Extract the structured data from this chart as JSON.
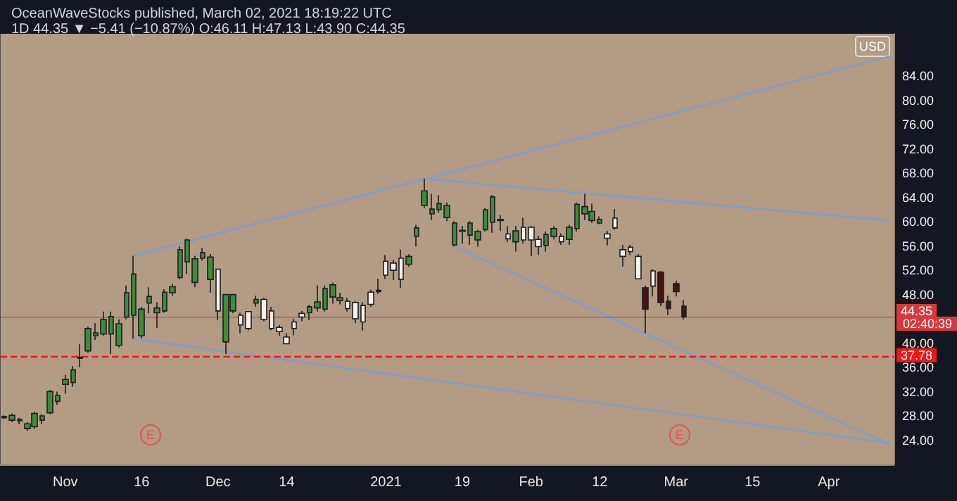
{
  "chart_data": {
    "type": "candlestick",
    "title": "OceanWaveStocks published, March 02, 2021 18:19:22 UTC",
    "subtitle": "1D 44.35 ▼ −5.41 (−10.87%) O:46.11 H:47.13 L:43.90 C:44.35",
    "categories": [
      null,
      null,
      null,
      null,
      null,
      null,
      null,
      null,
      "Nov",
      null,
      null,
      null,
      null,
      null,
      null,
      null,
      null,
      null,
      "16",
      null,
      null,
      null,
      null,
      null,
      null,
      null,
      null,
      null,
      "Dec",
      null,
      null,
      null,
      null,
      null,
      null,
      null,
      null,
      "14",
      null,
      null,
      null,
      null,
      null,
      null,
      null,
      null,
      null,
      null,
      null,
      null,
      "2021",
      null,
      null,
      null,
      null,
      null,
      null,
      null,
      null,
      null,
      "19",
      null,
      null,
      null,
      null,
      null,
      null,
      null,
      null,
      "Feb",
      null,
      null,
      null,
      null,
      null,
      null,
      null,
      null,
      "12",
      null,
      null,
      null,
      null,
      null,
      null,
      null,
      null,
      null,
      "Mar",
      null,
      null,
      null,
      null,
      null,
      null,
      null,
      null,
      null,
      "15",
      null,
      null,
      null,
      null,
      null,
      null,
      null,
      null,
      null,
      "Apr",
      null,
      null,
      null,
      null,
      null,
      null,
      null,
      null
    ],
    "ohlc": [
      [
        27.7,
        28.1,
        27.5,
        27.9
      ],
      [
        27.3,
        28.4,
        27.0,
        28.1
      ],
      [
        27.4,
        27.7,
        26.6,
        27.2
      ],
      [
        25.9,
        27.0,
        25.5,
        26.7
      ],
      [
        26.2,
        28.7,
        25.9,
        28.4
      ],
      [
        27.3,
        28.3,
        26.6,
        28.0
      ],
      [
        28.5,
        32.3,
        28.3,
        32.0
      ],
      [
        30.4,
        32.0,
        29.8,
        31.4
      ],
      [
        33.2,
        34.8,
        31.7,
        34.0
      ],
      [
        33.5,
        36.2,
        32.8,
        35.6
      ],
      [
        37.5,
        39.8,
        36.0,
        37.7
      ],
      [
        38.7,
        42.7,
        38.4,
        42.4
      ],
      [
        41.2,
        43.3,
        40.5,
        41.7
      ],
      [
        41.5,
        45.2,
        41.2,
        43.9
      ],
      [
        41.5,
        45.2,
        38.2,
        44.4
      ],
      [
        39.6,
        43.9,
        39.3,
        43.2
      ],
      [
        44.3,
        49.5,
        43.9,
        48.3
      ],
      [
        44.6,
        54.4,
        40.7,
        51.4
      ],
      [
        41.2,
        46.0,
        40.8,
        45.6
      ],
      [
        46.6,
        49.2,
        44.9,
        47.7
      ],
      [
        45.0,
        46.7,
        42.5,
        45.8
      ],
      [
        45.3,
        48.9,
        45.0,
        48.4
      ],
      [
        48.3,
        49.8,
        47.8,
        49.3
      ],
      [
        50.8,
        55.9,
        50.5,
        55.4
      ],
      [
        53.4,
        57.2,
        51.4,
        57.0
      ],
      [
        50.0,
        54.4,
        49.2,
        53.9
      ],
      [
        54.0,
        55.7,
        53.6,
        54.9
      ],
      [
        50.5,
        54.7,
        48.3,
        54.2
      ],
      [
        52.2,
        52.3,
        43.8,
        45.3
      ],
      [
        40.2,
        48.1,
        38.2,
        48.0
      ],
      [
        45.3,
        48.1,
        44.9,
        48.0
      ],
      [
        44.6,
        45.0,
        41.6,
        43.0
      ],
      [
        45.2,
        45.3,
        42.1,
        42.4
      ],
      [
        46.6,
        47.8,
        46.0,
        47.2
      ],
      [
        47.2,
        47.5,
        43.6,
        43.9
      ],
      [
        45.3,
        46.0,
        42.1,
        42.4
      ],
      [
        42.6,
        43.0,
        41.2,
        41.9
      ],
      [
        41.0,
        41.6,
        39.8,
        39.9
      ],
      [
        43.5,
        44.0,
        41.3,
        42.4
      ],
      [
        44.9,
        45.3,
        43.6,
        44.3
      ],
      [
        45.0,
        46.3,
        43.8,
        46.0
      ],
      [
        45.8,
        49.5,
        45.2,
        46.8
      ],
      [
        45.6,
        49.5,
        45.2,
        49.0
      ],
      [
        47.6,
        50.0,
        46.5,
        49.6
      ],
      [
        47.0,
        48.3,
        46.4,
        47.5
      ],
      [
        46.9,
        47.5,
        45.2,
        45.7
      ],
      [
        46.7,
        46.9,
        43.3,
        44.0
      ],
      [
        46.2,
        46.7,
        42.1,
        43.5
      ],
      [
        48.4,
        48.8,
        46.0,
        46.4
      ],
      [
        48.7,
        50.6,
        48.1,
        48.5
      ],
      [
        53.5,
        54.5,
        50.6,
        51.2
      ],
      [
        53.2,
        53.7,
        50.4,
        52.0
      ],
      [
        54.0,
        55.4,
        49.1,
        50.5
      ],
      [
        53.0,
        54.7,
        52.6,
        54.3
      ],
      [
        57.6,
        59.5,
        55.9,
        59.0
      ],
      [
        62.7,
        67.1,
        62.3,
        65.1
      ],
      [
        61.3,
        64.6,
        60.3,
        62.1
      ],
      [
        62.0,
        64.4,
        61.5,
        63.0
      ],
      [
        60.7,
        63.2,
        60.1,
        62.7
      ],
      [
        56.2,
        60.1,
        55.9,
        59.8
      ],
      [
        58.6,
        59.3,
        56.4,
        58.4
      ],
      [
        57.8,
        60.1,
        56.2,
        59.8
      ],
      [
        57.0,
        58.7,
        55.9,
        58.4
      ],
      [
        58.7,
        62.3,
        58.4,
        62.0
      ],
      [
        59.9,
        64.4,
        58.2,
        64.1
      ],
      [
        60.2,
        61.1,
        58.5,
        60.4
      ],
      [
        58.0,
        59.3,
        56.7,
        57.2
      ],
      [
        56.7,
        59.3,
        55.1,
        58.5
      ],
      [
        59.1,
        60.7,
        56.4,
        57.0
      ],
      [
        59.1,
        59.3,
        54.3,
        57.0
      ],
      [
        57.1,
        57.7,
        54.5,
        55.9
      ],
      [
        56.1,
        58.4,
        55.1,
        57.9
      ],
      [
        57.6,
        59.3,
        57.1,
        58.9
      ],
      [
        57.6,
        58.1,
        56.2,
        56.7
      ],
      [
        57.1,
        59.5,
        56.2,
        59.1
      ],
      [
        58.9,
        63.2,
        58.4,
        62.9
      ],
      [
        61.3,
        64.6,
        60.3,
        62.5
      ],
      [
        60.2,
        63.0,
        59.8,
        61.7
      ],
      [
        59.8,
        60.9,
        59.6,
        60.4
      ],
      [
        58.0,
        58.5,
        56.1,
        57.3
      ],
      [
        60.6,
        62.1,
        58.7,
        59.0
      ],
      [
        55.4,
        56.2,
        52.6,
        54.3
      ],
      [
        55.8,
        56.2,
        54.5,
        55.1
      ],
      [
        54.3,
        54.7,
        50.5,
        50.6
      ],
      [
        49.1,
        49.5,
        41.6,
        45.6
      ],
      [
        51.9,
        52.2,
        47.7,
        49.4
      ],
      [
        51.7,
        51.9,
        46.1,
        46.7
      ],
      [
        46.9,
        47.8,
        44.6,
        45.7
      ],
      [
        49.8,
        50.3,
        47.7,
        48.5
      ],
      [
        46.11,
        47.13,
        43.9,
        44.35
      ],
      null,
      null,
      null,
      null,
      null,
      null,
      null,
      null,
      null,
      null,
      null,
      null,
      null,
      null,
      null,
      null,
      null,
      null,
      null,
      null,
      null,
      null,
      null,
      null,
      null,
      null,
      null
    ],
    "colors": [
      "#3d8b3d",
      "#3d8b3d",
      "#3d8b3d",
      "#3d8b3d",
      "#3d8b3d",
      "#3d8b3d",
      "#3d8b3d",
      "#3d8b3d",
      "#3d8b3d",
      "#3d8b3d",
      "#3d8b3d",
      "#3d8b3d",
      "#3d8b3d",
      "#3d8b3d",
      "#3d8b3d",
      "#3d8b3d",
      "#3d8b3d",
      "#3d8b3d",
      "#3d8b3d",
      "#3d8b3d",
      "#3d8b3d",
      "#3d8b3d",
      "#3d8b3d",
      "#3d8b3d",
      "#3d8b3d",
      "#3d8b3d",
      "#3d8b3d",
      "#3d8b3d",
      "#f4f1ec",
      "#3d8b3d",
      "#3d8b3d",
      "#f4f1ec",
      "#f4f1ec",
      "#3d8b3d",
      "#f4f1ec",
      "#f4f1ec",
      "#f4f1ec",
      "#f4f1ec",
      "#f4f1ec",
      "#f4f1ec",
      "#3d8b3d",
      "#3d8b3d",
      "#3d8b3d",
      "#3d8b3d",
      "#3d8b3d",
      "#f4f1ec",
      "#f4f1ec",
      "#f4f1ec",
      "#f4f1ec",
      "#f4f1ec",
      "#f4f1ec",
      "#f4f1ec",
      "#f4f1ec",
      "#3d8b3d",
      "#3d8b3d",
      "#3d8b3d",
      "#3d8b3d",
      "#3d8b3d",
      "#3d8b3d",
      "#3d8b3d",
      "#f4f1ec",
      "#3d8b3d",
      "#3d8b3d",
      "#3d8b3d",
      "#3d8b3d",
      "#3d8b3d",
      "#f4f1ec",
      "#3d8b3d",
      "#f4f1ec",
      "#f4f1ec",
      "#f4f1ec",
      "#3d8b3d",
      "#3d8b3d",
      "#f4f1ec",
      "#3d8b3d",
      "#3d8b3d",
      "#3d8b3d",
      "#3d8b3d",
      "#3d8b3d",
      "#f4f1ec",
      "#f4f1ec",
      "#f4f1ec",
      "#f4f1ec",
      "#f4f1ec",
      "#4a1212",
      "#f4f1ec",
      "#4a1212",
      "#4a1212",
      "#4a1212",
      "#4a1212",
      null,
      null,
      null,
      null,
      null,
      null,
      null,
      null,
      null,
      null,
      null,
      null,
      null,
      null,
      null,
      null,
      null,
      null,
      null,
      null,
      null,
      null,
      null,
      null,
      null,
      null,
      null
    ],
    "series": [
      {
        "type": "line",
        "color": "#7f9ecb",
        "values": [
          null,
          null,
          null,
          null,
          null,
          null,
          null,
          null,
          null,
          null,
          null,
          null,
          null,
          null,
          null,
          null,
          null,
          54.4,
          null,
          null,
          null,
          null,
          null,
          null,
          null,
          null,
          null,
          null,
          null,
          null,
          null,
          null,
          null,
          null,
          null,
          null,
          null,
          null,
          null,
          null,
          null,
          null,
          null,
          null,
          null,
          null,
          null,
          null,
          null,
          null,
          null,
          null,
          null,
          null,
          null,
          null,
          null,
          null,
          null,
          null,
          null,
          null,
          null,
          null,
          null,
          null,
          null,
          null,
          null,
          null,
          null,
          null,
          null,
          null,
          null,
          null,
          null,
          null,
          null,
          null,
          null,
          null,
          null,
          null,
          null,
          null,
          null,
          null,
          null,
          null,
          null,
          null,
          null,
          null,
          null,
          null,
          null,
          null,
          null,
          null,
          null,
          null,
          null,
          null,
          null,
          null,
          null,
          null,
          null,
          null,
          null,
          null,
          null,
          null,
          null,
          null,
          87.3
        ]
      },
      {
        "type": "line",
        "color": "#7f9ecb",
        "values": [
          null,
          null,
          null,
          null,
          null,
          null,
          null,
          null,
          null,
          null,
          null,
          null,
          null,
          null,
          null,
          null,
          null,
          null,
          null,
          null,
          null,
          null,
          null,
          null,
          null,
          null,
          null,
          null,
          null,
          null,
          null,
          null,
          null,
          null,
          null,
          null,
          null,
          null,
          null,
          null,
          null,
          null,
          null,
          null,
          null,
          null,
          null,
          null,
          null,
          null,
          null,
          null,
          null,
          null,
          null,
          67.1,
          null,
          null,
          null,
          null,
          null,
          null,
          null,
          null,
          null,
          null,
          null,
          null,
          null,
          null,
          null,
          null,
          null,
          null,
          null,
          null,
          null,
          null,
          null,
          null,
          null,
          null,
          null,
          null,
          null,
          null,
          null,
          null,
          null,
          null,
          null,
          null,
          null,
          null,
          null,
          null,
          null,
          null,
          null,
          null,
          null,
          null,
          null,
          null,
          null,
          null,
          null,
          null,
          null,
          null,
          null,
          null,
          null,
          null,
          null,
          null,
          60.2
        ]
      },
      {
        "type": "line",
        "color": "#7f9ecb",
        "values": [
          null,
          null,
          null,
          null,
          null,
          null,
          null,
          null,
          null,
          null,
          null,
          null,
          null,
          null,
          null,
          null,
          null,
          40.7,
          null,
          null,
          null,
          null,
          null,
          null,
          null,
          null,
          null,
          null,
          null,
          null,
          null,
          null,
          null,
          null,
          null,
          null,
          null,
          null,
          null,
          null,
          null,
          null,
          null,
          null,
          null,
          null,
          null,
          null,
          null,
          null,
          null,
          null,
          null,
          null,
          null,
          null,
          null,
          null,
          null,
          null,
          null,
          null,
          null,
          null,
          null,
          null,
          null,
          null,
          null,
          null,
          null,
          null,
          null,
          null,
          null,
          null,
          null,
          null,
          null,
          null,
          null,
          null,
          null,
          null,
          null,
          null,
          null,
          null,
          null,
          null,
          null,
          null,
          null,
          null,
          null,
          null,
          null,
          null,
          null,
          null,
          null,
          null,
          null,
          null,
          null,
          null,
          null,
          null,
          null,
          null,
          null,
          null,
          null,
          null,
          null,
          null,
          23.5
        ]
      },
      {
        "type": "line",
        "color": "#7f9ecb",
        "values": [
          null,
          null,
          null,
          null,
          null,
          null,
          null,
          null,
          null,
          null,
          null,
          null,
          null,
          null,
          null,
          null,
          null,
          null,
          null,
          null,
          null,
          null,
          null,
          null,
          null,
          null,
          null,
          null,
          null,
          null,
          null,
          null,
          null,
          null,
          null,
          null,
          null,
          null,
          null,
          null,
          null,
          null,
          null,
          null,
          null,
          null,
          null,
          null,
          null,
          null,
          null,
          null,
          null,
          null,
          null,
          null,
          null,
          null,
          null,
          55.9,
          null,
          null,
          null,
          null,
          null,
          null,
          null,
          null,
          null,
          null,
          null,
          null,
          null,
          null,
          null,
          null,
          null,
          null,
          null,
          null,
          null,
          null,
          null,
          null,
          null,
          null,
          null,
          null,
          null,
          null,
          null,
          null,
          null,
          null,
          null,
          null,
          null,
          null,
          null,
          null,
          null,
          null,
          null,
          null,
          null,
          null,
          null,
          null,
          null,
          null,
          null,
          null,
          null,
          null,
          null,
          null,
          23.3
        ]
      }
    ],
    "ylim": [
      20,
      91
    ],
    "yticks": [
      {
        "value": 24,
        "label": "24.00"
      },
      {
        "value": 28,
        "label": "28.00"
      },
      {
        "value": 32,
        "label": "32.00"
      },
      {
        "value": 36,
        "label": "36.00"
      },
      {
        "value": 40,
        "label": "40.00"
      },
      {
        "value": 48,
        "label": "48.00"
      },
      {
        "value": 52,
        "label": "52.00"
      },
      {
        "value": 56,
        "label": "56.00"
      },
      {
        "value": 60,
        "label": "60.00"
      },
      {
        "value": 64,
        "label": "64.00"
      },
      {
        "value": 68,
        "label": "68.00"
      },
      {
        "value": 72,
        "label": "72.00"
      },
      {
        "value": 76,
        "label": "76.00"
      },
      {
        "value": 80,
        "label": "80.00"
      },
      {
        "value": 84,
        "label": "84.00"
      }
    ],
    "ref_lines": [
      {
        "axis": "y",
        "value": 44.35,
        "label": "44.35",
        "color": "#d9383a",
        "line_style": "solid"
      },
      {
        "axis": "y",
        "value": 37.78,
        "label": "37.78",
        "color": "#f01616",
        "line_style": "dashed"
      }
    ],
    "annotations": [
      "E",
      "E",
      "USD",
      "02:40:39"
    ]
  }
}
